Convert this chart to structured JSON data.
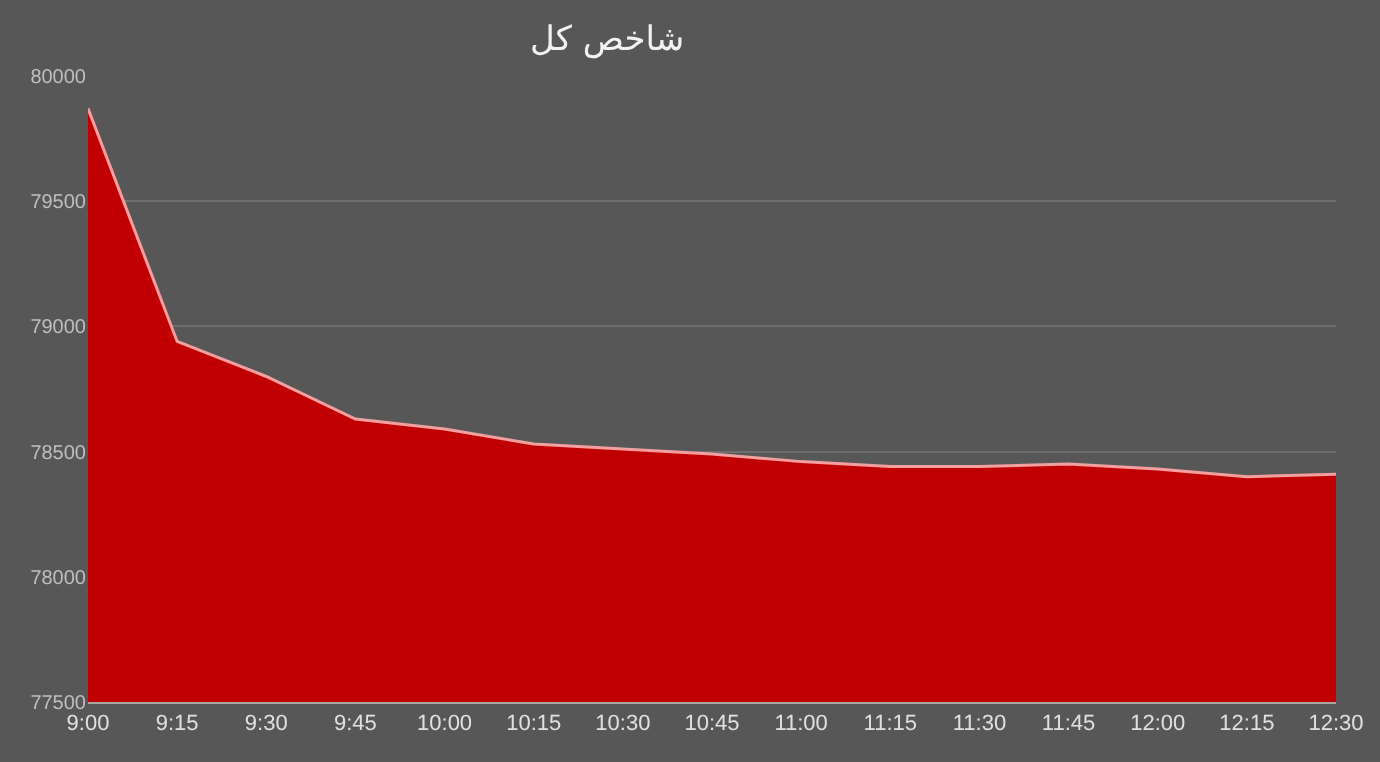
{
  "chart_data": {
    "type": "area",
    "title": "شاخص کل",
    "categories": [
      "9:00",
      "9:15",
      "9:30",
      "9:45",
      "10:00",
      "10:15",
      "10:30",
      "10:45",
      "11:00",
      "11:15",
      "11:30",
      "11:45",
      "12:00",
      "12:15",
      "12:30"
    ],
    "series": [
      {
        "color": "#c00000",
        "values": [
          79870,
          78940,
          78800,
          78630,
          78590,
          78530,
          78510,
          78490,
          78460,
          78440,
          78440,
          78450,
          78430,
          78400,
          78410
        ]
      }
    ],
    "ylim": [
      77500,
      80000
    ],
    "yticks": [
      77500,
      78000,
      78500,
      79000,
      79500,
      80000
    ],
    "grid": "y"
  }
}
